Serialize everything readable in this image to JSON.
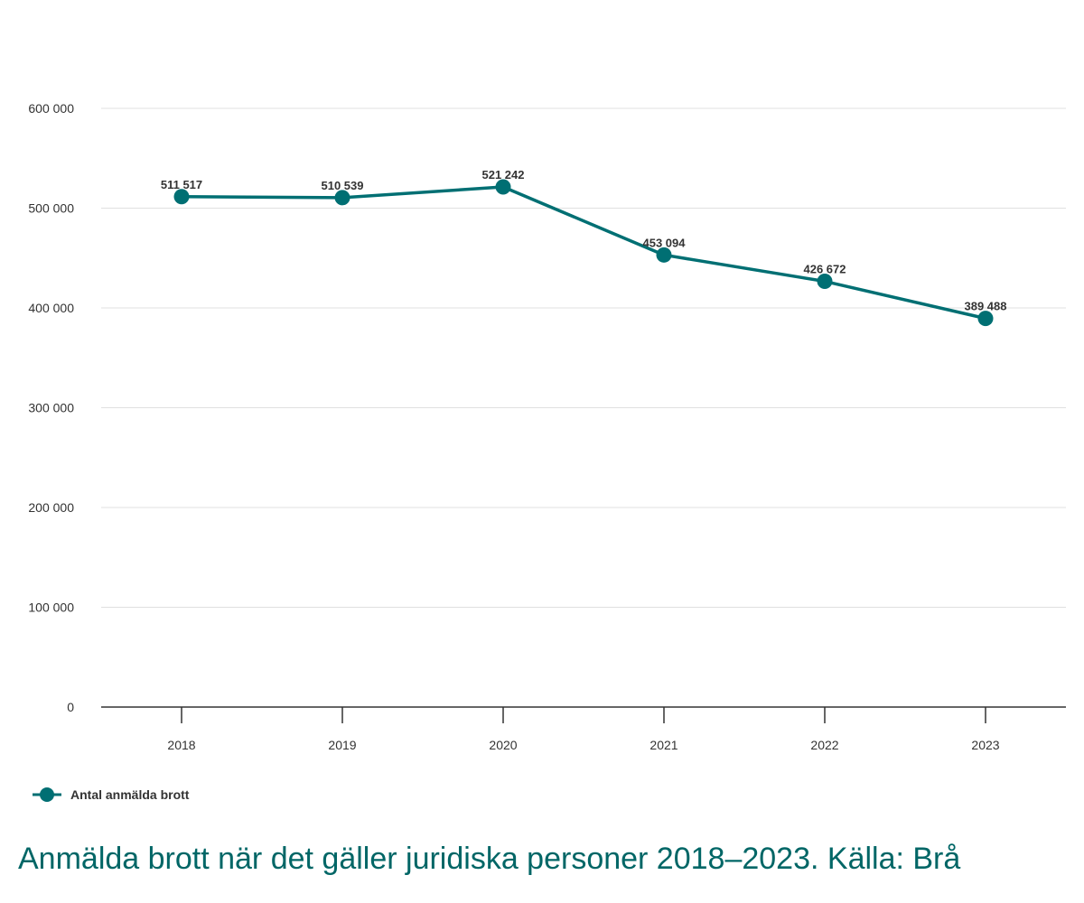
{
  "chart_data": {
    "type": "line",
    "categories": [
      "2018",
      "2019",
      "2020",
      "2021",
      "2022",
      "2023"
    ],
    "series": [
      {
        "name": "Antal anmälda brott",
        "values": [
          511517,
          510539,
          521242,
          453094,
          426672,
          389488
        ],
        "data_labels": [
          "511 517",
          "510 539",
          "521 242",
          "453 094",
          "426 672",
          "389 488"
        ]
      }
    ],
    "yticks": [
      0,
      100000,
      200000,
      300000,
      400000,
      500000,
      600000
    ],
    "ytick_labels": [
      "0",
      "100 000",
      "200 000",
      "300 000",
      "400 000",
      "500 000",
      "600 000"
    ],
    "ylim": [
      0,
      600000
    ],
    "grid": true,
    "legend_position": "bottom-left",
    "color": "#006f73"
  },
  "caption": "Anmälda brott när det gäller juridiska personer 2018–2023. Källa: Brå"
}
